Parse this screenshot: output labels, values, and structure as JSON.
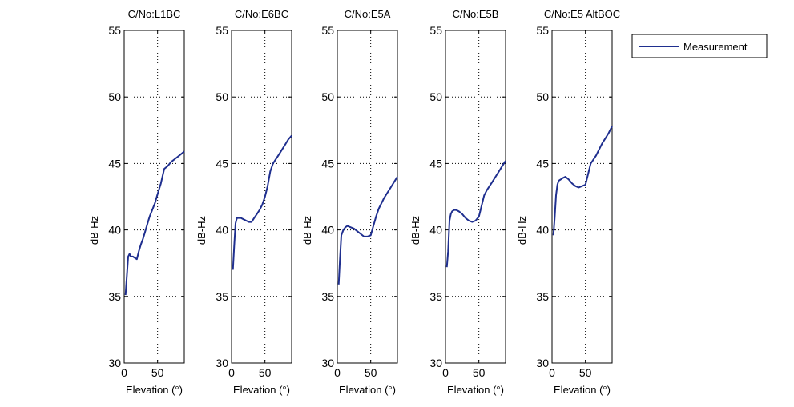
{
  "chart_data": [
    {
      "type": "line",
      "title": "C/No:L1BC",
      "xlabel": "Elevation (°)",
      "ylabel": "dB-Hz",
      "xlim": [
        0,
        90
      ],
      "ylim": [
        30,
        55
      ],
      "xticks": [
        "0",
        "50"
      ],
      "yticks": [
        "30",
        "35",
        "40",
        "45",
        "50",
        "55"
      ],
      "grid": true,
      "series": [
        {
          "name": "Measurement",
          "x": [
            2,
            4,
            6,
            8,
            10,
            13,
            16,
            19,
            22,
            25,
            28,
            31,
            35,
            38,
            42,
            46,
            50,
            55,
            60,
            65,
            70,
            75,
            80,
            85,
            90
          ],
          "y": [
            35.1,
            36.5,
            38.0,
            38.2,
            38.0,
            38.0,
            37.9,
            37.8,
            38.4,
            38.9,
            39.3,
            39.8,
            40.5,
            41.0,
            41.5,
            42.0,
            42.7,
            43.5,
            44.6,
            44.8,
            45.1,
            45.3,
            45.5,
            45.7,
            45.9
          ]
        }
      ]
    },
    {
      "type": "line",
      "title": "C/No:E6BC",
      "xlabel": "Elevation (°)",
      "ylabel": "dB-Hz",
      "xlim": [
        0,
        90
      ],
      "ylim": [
        30,
        55
      ],
      "xticks": [
        "0",
        "50"
      ],
      "yticks": [
        "30",
        "35",
        "40",
        "45",
        "50",
        "55"
      ],
      "grid": true,
      "series": [
        {
          "name": "Measurement",
          "x": [
            2,
            4,
            6,
            8,
            10,
            14,
            18,
            22,
            26,
            30,
            34,
            38,
            42,
            46,
            50,
            54,
            58,
            62,
            66,
            70,
            75,
            80,
            85,
            90
          ],
          "y": [
            37.0,
            38.8,
            40.5,
            40.9,
            40.9,
            40.9,
            40.8,
            40.7,
            40.6,
            40.6,
            40.9,
            41.2,
            41.5,
            41.9,
            42.5,
            43.3,
            44.4,
            45.0,
            45.3,
            45.6,
            46.0,
            46.4,
            46.8,
            47.1
          ]
        }
      ]
    },
    {
      "type": "line",
      "title": "C/No:E5A",
      "xlabel": "Elevation (°)",
      "ylabel": "dB-Hz",
      "xlim": [
        0,
        90
      ],
      "ylim": [
        30,
        55
      ],
      "xticks": [
        "0",
        "50"
      ],
      "yticks": [
        "30",
        "35",
        "40",
        "45",
        "50",
        "55"
      ],
      "grid": true,
      "series": [
        {
          "name": "Measurement",
          "x": [
            2,
            4,
            6,
            9,
            12,
            15,
            20,
            25,
            30,
            35,
            40,
            45,
            50,
            54,
            58,
            62,
            66,
            70,
            75,
            80,
            85,
            90
          ],
          "y": [
            35.9,
            37.8,
            39.6,
            40.0,
            40.2,
            40.3,
            40.2,
            40.1,
            39.9,
            39.7,
            39.5,
            39.5,
            39.6,
            40.3,
            41.0,
            41.6,
            42.0,
            42.4,
            42.8,
            43.2,
            43.6,
            44.0
          ]
        }
      ]
    },
    {
      "type": "line",
      "title": "C/No:E5B",
      "xlabel": "Elevation (°)",
      "ylabel": "dB-Hz",
      "xlim": [
        0,
        90
      ],
      "ylim": [
        30,
        55
      ],
      "xticks": [
        "0",
        "50"
      ],
      "yticks": [
        "30",
        "35",
        "40",
        "45",
        "50",
        "55"
      ],
      "grid": true,
      "series": [
        {
          "name": "Measurement",
          "x": [
            2,
            4,
            6,
            8,
            10,
            13,
            16,
            20,
            25,
            30,
            35,
            40,
            45,
            50,
            54,
            58,
            62,
            66,
            70,
            75,
            80,
            85,
            90
          ],
          "y": [
            37.2,
            38.4,
            40.7,
            41.2,
            41.4,
            41.5,
            41.5,
            41.4,
            41.2,
            40.9,
            40.7,
            40.6,
            40.7,
            41.0,
            41.8,
            42.6,
            43.0,
            43.3,
            43.6,
            44.0,
            44.4,
            44.8,
            45.2
          ]
        }
      ]
    },
    {
      "type": "line",
      "title": "C/No:E5 AltBOC",
      "xlabel": "Elevation (°)",
      "ylabel": "dB-Hz",
      "xlim": [
        0,
        90
      ],
      "ylim": [
        30,
        55
      ],
      "xticks": [
        "0",
        "50"
      ],
      "yticks": [
        "30",
        "35",
        "40",
        "45",
        "50",
        "55"
      ],
      "grid": true,
      "series": [
        {
          "name": "Measurement",
          "x": [
            2,
            4,
            6,
            8,
            10,
            13,
            16,
            20,
            25,
            30,
            35,
            40,
            45,
            50,
            54,
            58,
            62,
            66,
            70,
            75,
            80,
            85,
            90
          ],
          "y": [
            39.6,
            40.9,
            42.6,
            43.4,
            43.7,
            43.8,
            43.9,
            44.0,
            43.8,
            43.5,
            43.3,
            43.2,
            43.3,
            43.4,
            44.2,
            45.0,
            45.3,
            45.6,
            46.0,
            46.5,
            46.9,
            47.3,
            47.8
          ]
        }
      ]
    }
  ],
  "legend": {
    "label": "Measurement",
    "placement": "top-right",
    "color": "#1f2f8f"
  }
}
